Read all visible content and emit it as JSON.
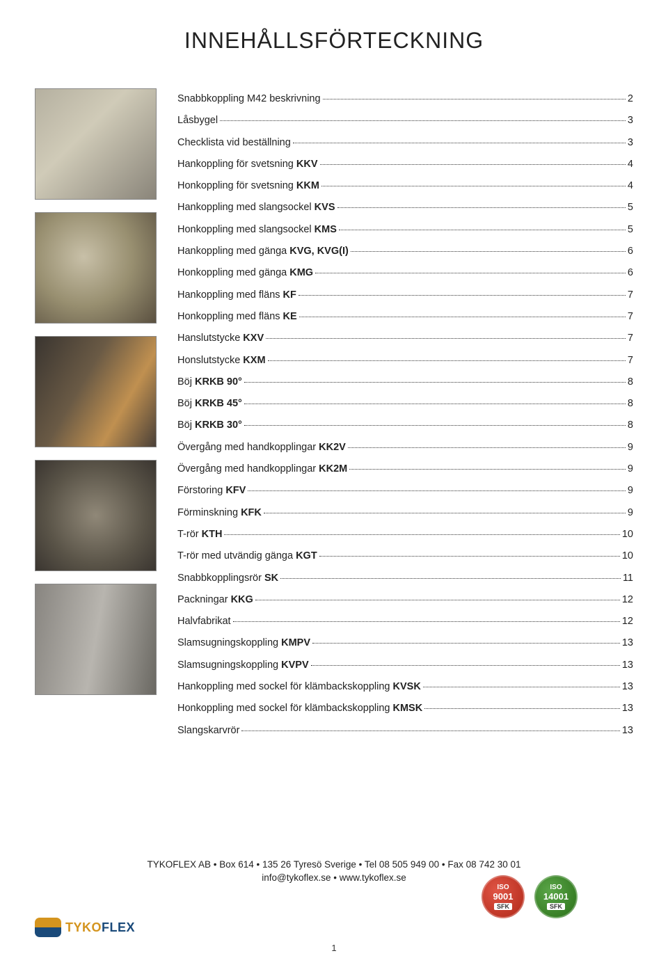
{
  "title": "INNEHÅLLSFÖRTECKNING",
  "toc": [
    {
      "label": "Snabbkoppling M42 beskrivning",
      "bold": "",
      "page": "2"
    },
    {
      "label": "Låsbygel",
      "bold": "",
      "page": "3"
    },
    {
      "label": "Checklista vid beställning",
      "bold": "",
      "page": "3"
    },
    {
      "label": "Hankoppling för svetsning ",
      "bold": "KKV",
      "page": "4"
    },
    {
      "label": "Honkoppling för svetsning ",
      "bold": "KKM",
      "page": "4"
    },
    {
      "label": "Hankoppling med slangsockel ",
      "bold": "KVS",
      "page": "5"
    },
    {
      "label": "Honkoppling med slangsockel ",
      "bold": "KMS",
      "page": "5"
    },
    {
      "label": "Hankoppling med gänga ",
      "bold": "KVG, KVG(I)",
      "page": "6"
    },
    {
      "label": "Honkoppling med gänga ",
      "bold": "KMG",
      "page": "6"
    },
    {
      "label": "Hankoppling med fläns ",
      "bold": "KF",
      "page": "7"
    },
    {
      "label": "Honkoppling med fläns ",
      "bold": "KE",
      "page": "7"
    },
    {
      "label": "Hanslutstycke ",
      "bold": "KXV",
      "page": "7"
    },
    {
      "label": "Honslutstycke ",
      "bold": "KXM",
      "page": "7"
    },
    {
      "label": "Böj ",
      "bold": "KRKB 90°",
      "page": "8"
    },
    {
      "label": "Böj ",
      "bold": "KRKB 45°",
      "page": "8"
    },
    {
      "label": "Böj ",
      "bold": "KRKB 30°",
      "page": "8"
    },
    {
      "label": "Övergång med handkopplingar ",
      "bold": "KK2V",
      "page": "9"
    },
    {
      "label": "Övergång med handkopplingar ",
      "bold": "KK2M",
      "page": "9"
    },
    {
      "label": "Förstoring ",
      "bold": "KFV",
      "page": "9"
    },
    {
      "label": "Förminskning ",
      "bold": "KFK",
      "page": "9"
    },
    {
      "label": "T-rör ",
      "bold": "KTH",
      "page": "10"
    },
    {
      "label": "T-rör med utvändig gänga ",
      "bold": "KGT",
      "page": "10"
    },
    {
      "label": "Snabbkopplingsrör ",
      "bold": "SK",
      "page": "11"
    },
    {
      "label": "Packningar ",
      "bold": "KKG",
      "page": "12"
    },
    {
      "label": "Halvfabrikat",
      "bold": "",
      "page": "12"
    },
    {
      "label": "Slamsugningskoppling ",
      "bold": "KMPV",
      "page": "13"
    },
    {
      "label": "Slamsugningskoppling ",
      "bold": "KVPV",
      "page": "13"
    },
    {
      "label": "Hankoppling med sockel för klämbackskoppling ",
      "bold": "KVSK",
      "page": "13"
    },
    {
      "label": "Honkoppling med sockel för klämbackskoppling ",
      "bold": "KMSK",
      "page": "13"
    },
    {
      "label": "Slangskarvrör",
      "bold": "",
      "page": "13"
    }
  ],
  "footer": {
    "line1": "TYKOFLEX AB • Box 614 • 135 26 Tyresö Sverige • Tel  08 505 949 00 • Fax 08 742 30 01",
    "line2": "info@tykoflex.se • www.tykoflex.se"
  },
  "badges": {
    "b1": {
      "iso": "ISO",
      "num": "9001",
      "sfk": "SFK"
    },
    "b2": {
      "iso": "ISO",
      "num": "14001",
      "sfk": "SFK"
    }
  },
  "logo": {
    "part1": "TYKO",
    "part2": "FLEX"
  },
  "page_number": "1",
  "colors": {
    "text": "#222222",
    "badge_red": "#c43420",
    "badge_green": "#3d8a28",
    "logo_orange": "#d4941e",
    "logo_blue": "#1a4a7a"
  }
}
